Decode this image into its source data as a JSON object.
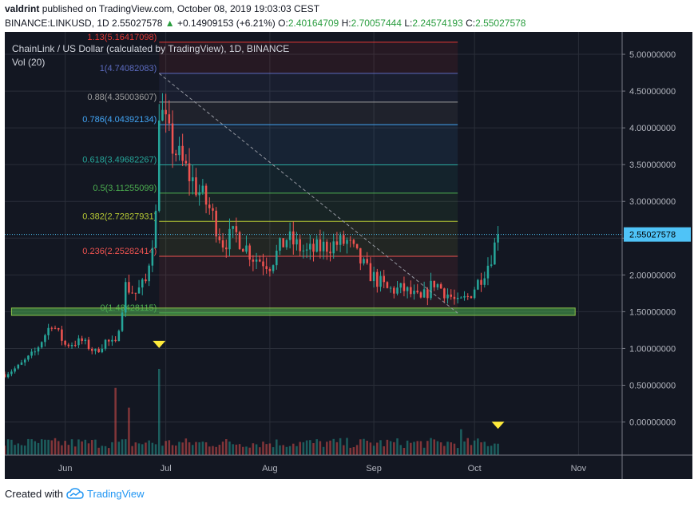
{
  "header": {
    "user": "valdrint",
    "published_text": "published on TradingView.com, October 08, 2019 19:03:03 CEST",
    "symbol": "BINANCE:LINKUSD, 1D",
    "last_price": "2.55027578",
    "change": "+0.14909153 (+6.21%)",
    "o_label": "O:",
    "o_value": "2.40164709",
    "h_label": "H:",
    "h_value": "2.70057444",
    "l_label": "L:",
    "l_value": "2.24574193",
    "c_label": "C:",
    "c_value": "2.55027578"
  },
  "chart_data": {
    "type": "candlestick",
    "title": "ChainLink / US Dollar (calculated by TradingView), 1D, BINANCE",
    "volume_label": "Vol (20)",
    "x_tick_labels": [
      "Jun",
      "Jul",
      "Aug",
      "Sep",
      "Oct",
      "Nov"
    ],
    "x_tick_dates": [
      "2019-06-01",
      "2019-07-01",
      "2019-08-01",
      "2019-09-01",
      "2019-10-01",
      "2019-11-01"
    ],
    "x_range": [
      "2019-05-14",
      "2019-11-14"
    ],
    "y_tick_labels": [
      "0.00000000",
      "0.50000000",
      "1.00000000",
      "1.50000000",
      "2.00000000",
      "2.50000000",
      "3.00000000",
      "3.50000000",
      "4.00000000",
      "4.50000000",
      "5.00000000"
    ],
    "y_ticks": [
      0,
      0.5,
      1,
      1.5,
      2,
      2.5,
      3,
      3.5,
      4,
      4.5,
      5
    ],
    "ylim": [
      -0.45,
      5.25
    ],
    "price_label": "2.55027578",
    "last_price": 2.55027578,
    "fibonacci": {
      "start_date": "2019-06-29",
      "end_date": "2019-09-26",
      "levels": [
        {
          "label": "1.13(5.16417098)",
          "level": 1.13,
          "price": 5.16417098,
          "color": "#e53935"
        },
        {
          "label": "1(4.74082083)",
          "level": 1,
          "price": 4.74082083,
          "color": "#5c6bc0"
        },
        {
          "label": "0.88(4.35003607)",
          "level": 0.88,
          "price": 4.35003607,
          "color": "#9e9e9e"
        },
        {
          "label": "0.786(4.04392134)",
          "level": 0.786,
          "price": 4.04392134,
          "color": "#42a5f5"
        },
        {
          "label": "0.618(3.49682267)",
          "level": 0.618,
          "price": 3.49682267,
          "color": "#26a69a"
        },
        {
          "label": "0.5(3.11255099)",
          "level": 0.5,
          "price": 3.11255099,
          "color": "#4caf50"
        },
        {
          "label": "0.382(2.72827931)",
          "level": 0.382,
          "price": 2.72827931,
          "color": "#b7c934"
        },
        {
          "label": "0.236(2.25282414)",
          "level": 0.236,
          "price": 2.25282414,
          "color": "#ef5350"
        },
        {
          "label": "0(1.48428115)",
          "level": 0,
          "price": 1.48428115,
          "color": "#4caf50"
        }
      ]
    },
    "support_zone": {
      "from_date": "2019-05-16",
      "to_date": "2019-10-31",
      "low": 1.45,
      "high": 1.55,
      "color": "#4caf50"
    },
    "trendline": {
      "from_date": "2019-06-29",
      "from_price": 4.74,
      "to_date": "2019-09-26",
      "to_price": 1.48
    },
    "markers": [
      {
        "date": "2019-06-29",
        "value": 1.05,
        "color": "#ffeb3b"
      },
      {
        "date": "2019-10-08",
        "value": -0.05,
        "color": "#ffeb3b"
      }
    ],
    "candle_keypoints": [
      [
        "2019-05-14",
        0.65
      ],
      [
        "2019-05-18",
        0.75
      ],
      [
        "2019-05-23",
        0.95
      ],
      [
        "2019-05-28",
        1.35
      ],
      [
        "2019-06-01",
        1.05
      ],
      [
        "2019-06-06",
        1.1
      ],
      [
        "2019-06-10",
        0.95
      ],
      [
        "2019-06-13",
        1.1
      ],
      [
        "2019-06-16",
        1.05
      ],
      [
        "2019-06-19",
        1.85
      ],
      [
        "2019-06-22",
        1.75
      ],
      [
        "2019-06-25",
        1.9
      ],
      [
        "2019-06-28",
        2.8
      ],
      [
        "2019-06-29",
        4.3
      ],
      [
        "2019-07-02",
        3.85
      ],
      [
        "2019-07-06",
        3.5
      ],
      [
        "2019-07-10",
        3.2
      ],
      [
        "2019-07-14",
        2.9
      ],
      [
        "2019-07-18",
        2.45
      ],
      [
        "2019-07-22",
        2.55
      ],
      [
        "2019-07-27",
        2.25
      ],
      [
        "2019-08-01",
        2.15
      ],
      [
        "2019-08-06",
        2.5
      ],
      [
        "2019-08-12",
        2.3
      ],
      [
        "2019-08-18",
        2.4
      ],
      [
        "2019-08-24",
        2.45
      ],
      [
        "2019-08-30",
        2.05
      ],
      [
        "2019-09-05",
        1.8
      ],
      [
        "2019-09-10",
        1.8
      ],
      [
        "2019-09-15",
        1.65
      ],
      [
        "2019-09-19",
        1.9
      ],
      [
        "2019-09-24",
        1.7
      ],
      [
        "2019-09-26",
        1.6
      ],
      [
        "2019-09-29",
        1.7
      ],
      [
        "2019-10-02",
        1.9
      ],
      [
        "2019-10-05",
        2.15
      ],
      [
        "2019-10-07",
        2.4
      ],
      [
        "2019-10-08",
        2.55
      ]
    ],
    "volume_spikes": [
      {
        "date": "2019-06-16",
        "value": 0.78
      },
      {
        "date": "2019-06-29",
        "value": 1.0
      },
      {
        "date": "2019-06-20",
        "value": 0.55
      },
      {
        "date": "2019-09-27",
        "value": 0.3
      }
    ],
    "colors": {
      "up": "#26a69a",
      "down": "#ef5350",
      "background": "#131722",
      "grid": "#2a2e39",
      "axis_text": "#b2b5be",
      "price_tag": "#4fc3f7"
    }
  },
  "footer": {
    "created_with": "Created with",
    "brand": "TradingView"
  }
}
